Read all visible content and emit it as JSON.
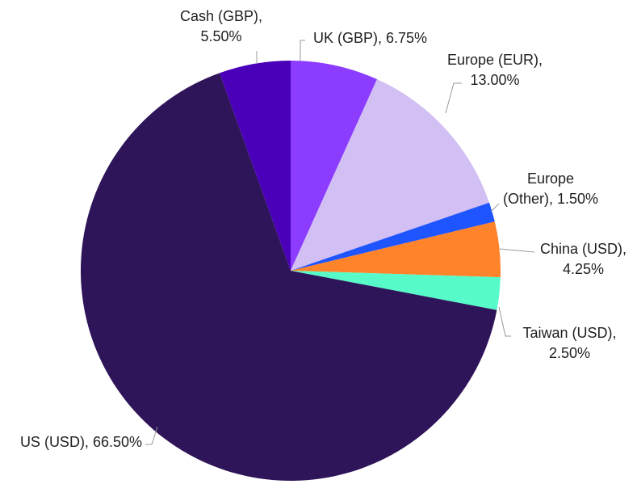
{
  "chart_data": {
    "type": "pie",
    "slices": [
      {
        "label": "UK (GBP), 6.75%",
        "value": 6.75,
        "color": "#8c3cff"
      },
      {
        "label": "Europe (EUR), 13.00%",
        "value": 13.0,
        "color": "#d2bff3"
      },
      {
        "label": "Europe (Other), 1.50%",
        "value": 1.5,
        "color": "#1f55ff"
      },
      {
        "label": "China (USD), 4.25%",
        "value": 4.25,
        "color": "#ff832b"
      },
      {
        "label": "Taiwan (USD), 2.50%",
        "value": 2.5,
        "color": "#57fbc9"
      },
      {
        "label": "US (USD), 66.50%",
        "value": 66.5,
        "color": "#2e1458"
      },
      {
        "label": "Cash (GBP), 5.50%",
        "value": 5.5,
        "color": "#4a00b8"
      }
    ],
    "label_lines": {
      "uk": [
        "UK (GBP), 6.75%"
      ],
      "europe_eur": [
        "Europe (EUR),",
        "13.00%"
      ],
      "europe_other": [
        "Europe",
        "(Other), 1.50%"
      ],
      "china": [
        "China (USD),",
        "4.25%"
      ],
      "taiwan": [
        "Taiwan (USD),",
        "2.50%"
      ],
      "us": [
        "US (USD), 66.50%"
      ],
      "cash": [
        "Cash (GBP),",
        "5.50%"
      ]
    },
    "start_angle_deg": 0,
    "direction": "clockwise",
    "legend": "none"
  }
}
